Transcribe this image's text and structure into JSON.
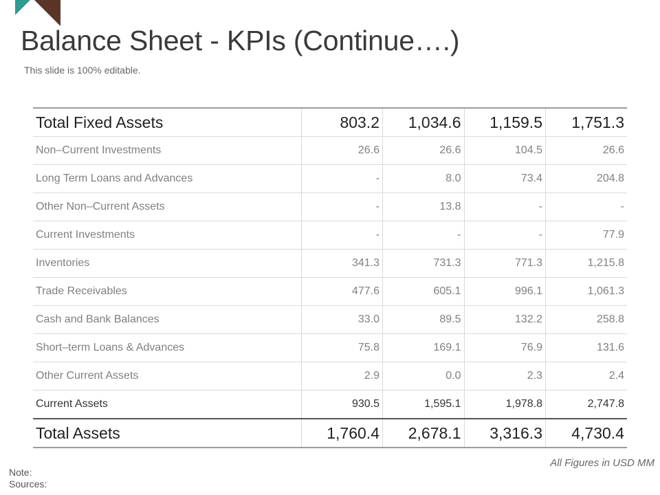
{
  "slide": {
    "title": "Balance Sheet - KPIs (Continue….)",
    "subtitle": "This slide is 100% editable.",
    "figures_note": "All Figures in USD MM",
    "note_label": "Note:",
    "sources_label": "Sources:"
  },
  "table": {
    "rows": [
      {
        "label": "Total Fixed Assets",
        "values": [
          "803.2",
          "1,034.6",
          "1,159.5",
          "1,751.3"
        ]
      },
      {
        "label": "Non–Current Investments",
        "values": [
          "26.6",
          "26.6",
          "104.5",
          "26.6"
        ]
      },
      {
        "label": "Long Term Loans and Advances",
        "values": [
          "-",
          "8.0",
          "73.4",
          "204.8"
        ]
      },
      {
        "label": "Other Non–Current Assets",
        "values": [
          "-",
          "13.8",
          "-",
          "-"
        ]
      },
      {
        "label": "Current Investments",
        "values": [
          "-",
          "-",
          "-",
          "77.9"
        ]
      },
      {
        "label": "Inventories",
        "values": [
          "341.3",
          "731.3",
          "771.3",
          "1,215.8"
        ]
      },
      {
        "label": "Trade Receivables",
        "values": [
          "477.6",
          "605.1",
          "996.1",
          "1,061.3"
        ]
      },
      {
        "label": "Cash and Bank Balances",
        "values": [
          "33.0",
          "89.5",
          "132.2",
          "258.8"
        ]
      },
      {
        "label": "Short–term Loans & Advances",
        "values": [
          "75.8",
          "169.1",
          "76.9",
          "131.6"
        ]
      },
      {
        "label": "Other Current Assets",
        "values": [
          "2.9",
          "0.0",
          "2.3",
          "2.4"
        ]
      },
      {
        "label": "Current Assets",
        "values": [
          "930.5",
          "1,595.1",
          "1,978.8",
          "2,747.8"
        ]
      },
      {
        "label": "Total Assets",
        "values": [
          "1,760.4",
          "2,678.1",
          "3,316.3",
          "4,730.4"
        ]
      }
    ]
  },
  "colors": {
    "accent_teal": "#2e9c93",
    "accent_brown": "#5a3527"
  }
}
